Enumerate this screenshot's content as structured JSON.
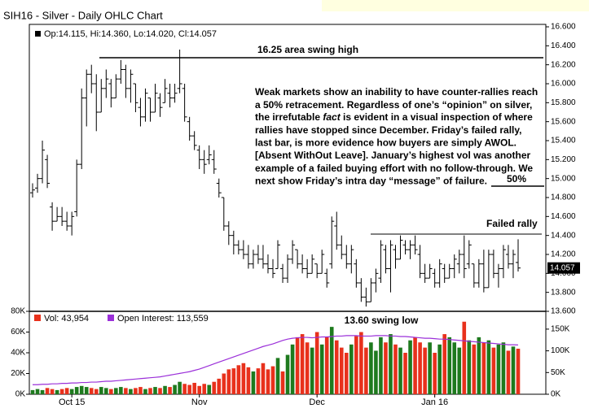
{
  "chart_data": {
    "type": "ohlc",
    "title": "SIH16 - Silver - Daily OHLC Chart",
    "price_legend": "Op:14.115, Hi:14.360, Lo:14.020, Cl:14.057",
    "last_label": "14.057",
    "bar_color": "#000000",
    "categories": [
      null,
      null,
      null,
      null,
      null,
      null,
      null,
      null,
      "Oct 15",
      null,
      null,
      null,
      null,
      null,
      null,
      null,
      null,
      null,
      null,
      null,
      null,
      null,
      null,
      null,
      null,
      null,
      null,
      null,
      null,
      null,
      null,
      null,
      null,
      null,
      "Nov",
      null,
      null,
      null,
      null,
      null,
      null,
      null,
      null,
      null,
      null,
      null,
      null,
      null,
      null,
      null,
      null,
      null,
      null,
      null,
      null,
      null,
      null,
      null,
      "Dec",
      null,
      null,
      null,
      null,
      null,
      null,
      null,
      null,
      null,
      null,
      null,
      null,
      null,
      null,
      null,
      null,
      null,
      null,
      null,
      null,
      null,
      null,
      null,
      "Jan 16",
      null,
      null,
      null,
      null,
      null,
      null,
      null,
      null,
      null,
      null,
      null,
      null,
      null,
      null,
      null,
      null
    ],
    "ohlc": [
      [
        14.85,
        14.95,
        14.8,
        14.88
      ],
      [
        14.9,
        15.05,
        14.85,
        15.0
      ],
      [
        15.0,
        15.4,
        14.95,
        15.3
      ],
      [
        15.2,
        15.25,
        14.9,
        14.95
      ],
      [
        14.7,
        14.75,
        14.45,
        14.55
      ],
      [
        14.55,
        14.7,
        14.55,
        14.6
      ],
      [
        14.6,
        14.7,
        14.5,
        14.55
      ],
      [
        14.55,
        14.65,
        14.45,
        14.5
      ],
      [
        14.5,
        14.65,
        14.4,
        14.6
      ],
      [
        14.65,
        15.2,
        14.6,
        15.15
      ],
      [
        15.15,
        15.95,
        15.1,
        15.85
      ],
      [
        15.85,
        16.15,
        15.55,
        16.1
      ],
      [
        16.1,
        16.2,
        15.9,
        16.0
      ],
      [
        16.0,
        16.1,
        15.5,
        15.7
      ],
      [
        15.7,
        16.05,
        15.7,
        15.95
      ],
      [
        15.95,
        16.15,
        15.85,
        16.05
      ],
      [
        16.0,
        16.05,
        15.75,
        15.85
      ],
      [
        15.85,
        16.1,
        15.85,
        16.05
      ],
      [
        16.05,
        16.25,
        16.0,
        16.15
      ],
      [
        16.15,
        16.2,
        15.85,
        15.95
      ],
      [
        15.95,
        16.15,
        15.8,
        16.1
      ],
      [
        16.0,
        16.0,
        15.7,
        15.8
      ],
      [
        15.75,
        15.85,
        15.55,
        15.65
      ],
      [
        15.65,
        15.95,
        15.6,
        15.9
      ],
      [
        15.85,
        15.85,
        15.6,
        15.7
      ],
      [
        15.7,
        16.0,
        15.7,
        15.9
      ],
      [
        15.85,
        15.9,
        15.65,
        15.75
      ],
      [
        15.8,
        16.05,
        15.8,
        15.95
      ],
      [
        15.9,
        16.0,
        15.75,
        15.85
      ],
      [
        15.85,
        16.0,
        15.8,
        15.9
      ],
      [
        15.95,
        16.36,
        15.9,
        16.0
      ],
      [
        15.95,
        16.0,
        15.6,
        15.65
      ],
      [
        15.6,
        15.65,
        15.4,
        15.45
      ],
      [
        15.45,
        15.5,
        15.3,
        15.35
      ],
      [
        15.3,
        15.35,
        15.1,
        15.2
      ],
      [
        15.2,
        15.3,
        15.05,
        15.15
      ],
      [
        15.2,
        15.35,
        15.15,
        15.25
      ],
      [
        15.2,
        15.3,
        15.05,
        15.1
      ],
      [
        14.95,
        15.0,
        14.8,
        14.85
      ],
      [
        14.8,
        14.8,
        14.45,
        14.5
      ],
      [
        14.5,
        14.55,
        14.3,
        14.4
      ],
      [
        14.4,
        14.45,
        14.2,
        14.3
      ],
      [
        14.3,
        14.35,
        14.2,
        14.25
      ],
      [
        14.25,
        14.35,
        14.15,
        14.2
      ],
      [
        14.2,
        14.3,
        14.05,
        14.1
      ],
      [
        14.1,
        14.25,
        14.05,
        14.2
      ],
      [
        14.2,
        14.3,
        14.1,
        14.15
      ],
      [
        14.15,
        14.3,
        14.05,
        14.1
      ],
      [
        14.1,
        14.2,
        14.0,
        14.05
      ],
      [
        14.05,
        14.15,
        13.95,
        14.0
      ],
      [
        14.05,
        14.35,
        14.05,
        14.3
      ],
      [
        14.05,
        14.1,
        13.9,
        13.95
      ],
      [
        13.95,
        14.2,
        13.9,
        14.15
      ],
      [
        14.15,
        14.35,
        14.1,
        14.3
      ],
      [
        14.25,
        14.25,
        14.05,
        14.1
      ],
      [
        14.1,
        14.2,
        14.0,
        14.05
      ],
      [
        14.05,
        14.15,
        13.95,
        14.0
      ],
      [
        14.0,
        14.2,
        14.0,
        14.15
      ],
      [
        14.1,
        14.1,
        13.95,
        14.0
      ],
      [
        14.0,
        14.25,
        14.0,
        14.2
      ],
      [
        14.0,
        14.05,
        13.85,
        13.9
      ],
      [
        14.1,
        14.6,
        14.05,
        14.55
      ],
      [
        14.5,
        14.65,
        14.25,
        14.3
      ],
      [
        14.3,
        14.4,
        14.15,
        14.2
      ],
      [
        14.2,
        14.3,
        14.05,
        14.1
      ],
      [
        14.1,
        14.3,
        14.0,
        14.25
      ],
      [
        14.1,
        14.15,
        13.85,
        13.9
      ],
      [
        13.9,
        13.95,
        13.7,
        13.75
      ],
      [
        13.75,
        13.85,
        13.65,
        13.7
      ],
      [
        13.7,
        13.95,
        13.7,
        13.9
      ],
      [
        13.9,
        14.05,
        13.8,
        14.0
      ],
      [
        13.95,
        14.35,
        13.9,
        14.3
      ],
      [
        14.25,
        14.3,
        14.0,
        14.05
      ],
      [
        14.05,
        14.35,
        13.8,
        14.3
      ],
      [
        14.25,
        14.3,
        14.05,
        14.15
      ],
      [
        14.15,
        14.4,
        14.15,
        14.35
      ],
      [
        14.3,
        14.35,
        14.2,
        14.25
      ],
      [
        14.25,
        14.35,
        14.15,
        14.3
      ],
      [
        14.3,
        14.4,
        14.2,
        14.25
      ],
      [
        14.2,
        14.3,
        13.95,
        14.0
      ],
      [
        14.0,
        14.1,
        13.9,
        13.95
      ],
      [
        13.95,
        14.1,
        13.95,
        14.05
      ],
      [
        14.0,
        14.05,
        13.85,
        13.9
      ],
      [
        13.9,
        14.15,
        13.85,
        14.1
      ],
      [
        14.05,
        14.1,
        13.9,
        13.95
      ],
      [
        13.95,
        14.1,
        13.95,
        14.05
      ],
      [
        14.05,
        14.2,
        13.95,
        14.15
      ],
      [
        14.1,
        14.25,
        14.0,
        14.2
      ],
      [
        14.2,
        14.4,
        13.95,
        14.05
      ],
      [
        14.1,
        14.35,
        14.05,
        14.3
      ],
      [
        14.1,
        14.1,
        13.85,
        13.9
      ],
      [
        13.9,
        14.15,
        13.85,
        14.1
      ],
      [
        14.1,
        14.25,
        13.8,
        13.85
      ],
      [
        13.85,
        14.25,
        13.85,
        14.2
      ],
      [
        14.2,
        14.25,
        13.95,
        14.0
      ],
      [
        14.0,
        14.1,
        13.85,
        14.05
      ],
      [
        14.05,
        14.3,
        13.95,
        14.25
      ],
      [
        14.2,
        14.3,
        14.05,
        14.1
      ],
      [
        14.1,
        14.25,
        13.95,
        14.2
      ],
      [
        14.115,
        14.36,
        14.02,
        14.057
      ]
    ],
    "ylim": [
      13.6,
      16.6
    ],
    "yticks": [
      {
        "value": 13.6,
        "label": "13.600"
      },
      {
        "value": 13.8,
        "label": "13.800"
      },
      {
        "value": 14.0,
        "label": "14.000"
      },
      {
        "value": 14.2,
        "label": "14.200"
      },
      {
        "value": 14.4,
        "label": "14.400"
      },
      {
        "value": 14.6,
        "label": "14.600"
      },
      {
        "value": 14.8,
        "label": "14.800"
      },
      {
        "value": 15.0,
        "label": "15.000"
      },
      {
        "value": 15.2,
        "label": "15.200"
      },
      {
        "value": 15.4,
        "label": "15.400"
      },
      {
        "value": 15.6,
        "label": "15.600"
      },
      {
        "value": 15.8,
        "label": "15.800"
      },
      {
        "value": 16.0,
        "label": "16.000"
      },
      {
        "value": 16.2,
        "label": "16.200"
      },
      {
        "value": 16.4,
        "label": "16.400"
      },
      {
        "value": 16.6,
        "label": "16.600"
      }
    ],
    "volume": {
      "legend": "Vol: 43,954",
      "up_color": "#1e7a1e",
      "down_color": "#e8311c",
      "values": [
        4000,
        5000,
        4000,
        6000,
        5000,
        4000,
        5000,
        6000,
        5000,
        7000,
        8000,
        7000,
        6000,
        5000,
        7000,
        6000,
        5000,
        6000,
        7000,
        6000,
        5000,
        6000,
        7000,
        5000,
        6000,
        7000,
        6000,
        8000,
        7000,
        9000,
        12000,
        10000,
        9000,
        11000,
        8000,
        10000,
        9000,
        12000,
        15000,
        20000,
        24000,
        25000,
        28000,
        30000,
        26000,
        22000,
        25000,
        30000,
        24000,
        27000,
        35000,
        22000,
        38000,
        48000,
        55000,
        58000,
        50000,
        45000,
        60000,
        48000,
        55000,
        65000,
        52000,
        45000,
        40000,
        48000,
        56000,
        60000,
        45000,
        50000,
        42000,
        55000,
        50000,
        58000,
        48000,
        45000,
        40000,
        52000,
        55000,
        50000,
        45000,
        50000,
        40000,
        48000,
        58000,
        55000,
        50000,
        45000,
        70000,
        52000,
        48000,
        55000,
        50000,
        52000,
        45000,
        48000,
        50000,
        42000,
        46000,
        43954
      ],
      "ylim": [
        0,
        80000
      ],
      "yticks": [
        {
          "value": 0,
          "label": "0K"
        },
        {
          "value": 20000,
          "label": "20K"
        },
        {
          "value": 40000,
          "label": "40K"
        },
        {
          "value": 60000,
          "label": "60K"
        },
        {
          "value": 80000,
          "label": "80K"
        }
      ]
    },
    "open_interest": {
      "legend": "Open Interest: 113,559",
      "color": "#9b30d9",
      "axis": "y2",
      "values": [
        22000,
        22000,
        23000,
        23000,
        24000,
        24000,
        25000,
        25000,
        26000,
        26000,
        27000,
        27000,
        28000,
        28000,
        29000,
        30000,
        30000,
        31000,
        32000,
        33000,
        34000,
        35000,
        36000,
        37000,
        38000,
        39000,
        40000,
        42000,
        44000,
        46000,
        48000,
        50000,
        52000,
        55000,
        58000,
        62000,
        66000,
        70000,
        74000,
        78000,
        82000,
        86000,
        90000,
        94000,
        98000,
        102000,
        106000,
        110000,
        113000,
        116000,
        120000,
        124000,
        127000,
        129000,
        130000,
        131000,
        131000,
        130000,
        131000,
        132000,
        132000,
        133000,
        134000,
        134000,
        135000,
        135000,
        135000,
        134000,
        134000,
        134000,
        135000,
        135000,
        135000,
        134000,
        134000,
        133000,
        133000,
        132000,
        131000,
        130000,
        129000,
        129000,
        128000,
        127000,
        127000,
        126000,
        125000,
        124000,
        123000,
        122000,
        121000,
        120000,
        119000,
        118000,
        117000,
        116000,
        115000,
        114000,
        114000,
        113559
      ],
      "y2lim": [
        0,
        191000
      ],
      "y2ticks": [
        {
          "value": 0,
          "label": "0K"
        },
        {
          "value": 50000,
          "label": "50K"
        },
        {
          "value": 100000,
          "label": "100K"
        },
        {
          "value": 150000,
          "label": "150K"
        }
      ]
    },
    "annotations": {
      "swing_high": "16.25 area swing high",
      "note_lines": [
        "Weak markets show an inability to have counter-rallies reach",
        "a 50% retracement.  Regardless of one’s “opinion” on silver,",
        [
          "the irrefutable ",
          "fact",
          " is evident in a visual inspection of where"
        ],
        "rallies have stopped since December.  Friday’s failed rally,",
        "last bar, is more evidence how buyers are simply AWOL.",
        "[Absent WithOut Leave].  January’s highest vol was another",
        "example of a failed buying effort with no follow-through.  We",
        "next show Friday’s intra day “message” of failure."
      ],
      "fifty": "50%",
      "failed_rally": "Failed rally",
      "swing_low": "13.60 swing low"
    }
  }
}
